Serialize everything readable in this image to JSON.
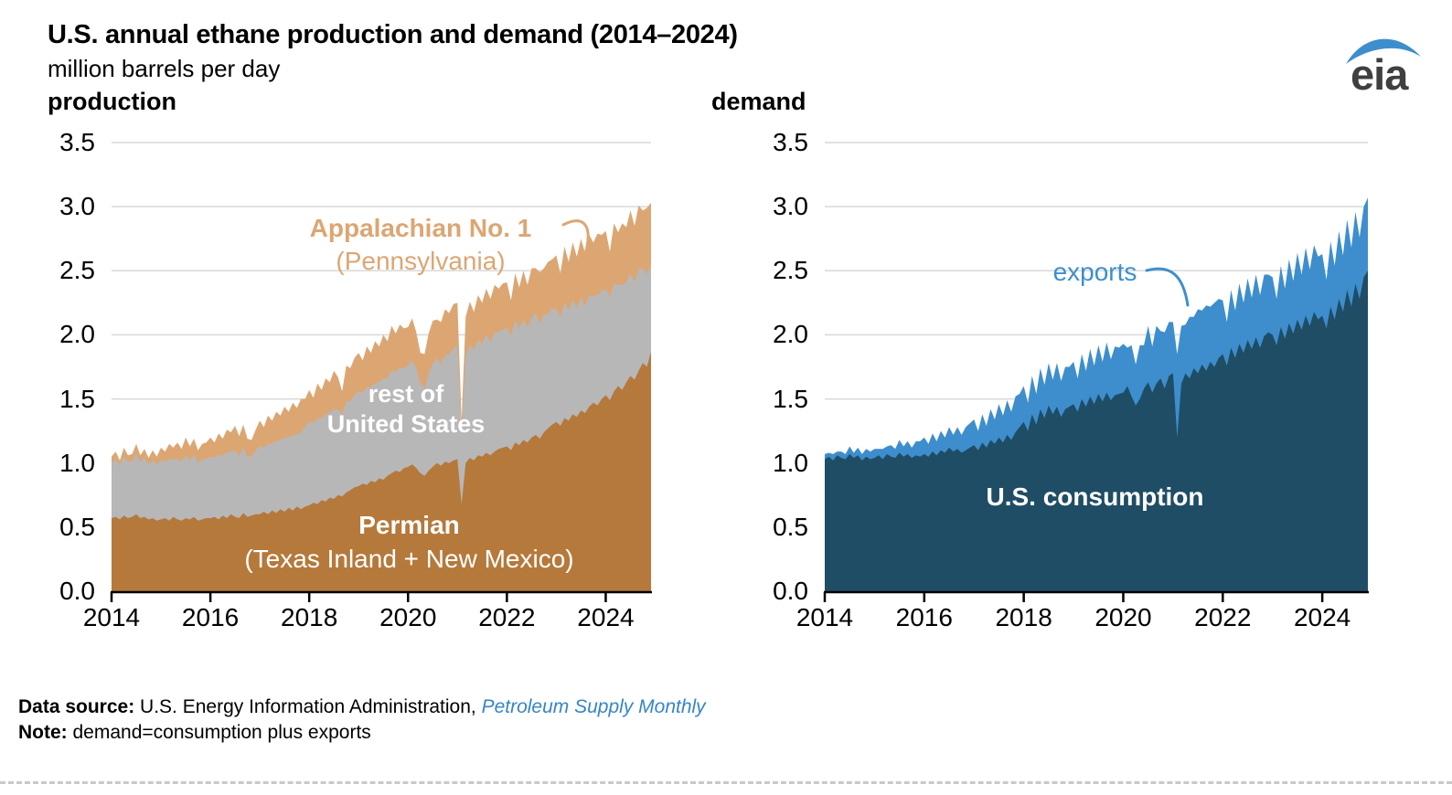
{
  "header": {
    "title": "U.S. annual ethane production and demand (2014–2024)",
    "subtitle": "million barrels per day",
    "logo_text": "eia"
  },
  "footer": {
    "source_label": "Data source:",
    "source_text": " U.S. Energy Information Administration, ",
    "source_link": "Petroleum Supply Monthly",
    "note_label": "Note:",
    "note_text": " demand=consumption plus exports"
  },
  "chart_data": [
    {
      "type": "area",
      "stacked": true,
      "title": "production",
      "ylabel": "million barrels per day",
      "ylim": [
        0,
        3.5
      ],
      "x_start": 2014,
      "points_per_year": 12,
      "x_ticks": [
        2014,
        2016,
        2018,
        2020,
        2022,
        2024
      ],
      "y_ticks": [
        0,
        0.5,
        1.0,
        1.5,
        2.0,
        2.5,
        3.0,
        3.5
      ],
      "y_tick_labels": [
        "0.0",
        "0.5",
        "1.0",
        "1.5",
        "2.0",
        "2.5",
        "3.0",
        "3.5"
      ],
      "grid": "horizontal",
      "legend_position": "inline-annotations",
      "annotations": {
        "appalachian": {
          "line1": "Appalachian No. 1",
          "line2": "(Pennsylvania)",
          "color": "#DCA673"
        },
        "rest": {
          "line1": "rest of",
          "line2": "United States",
          "color": "#ffffff"
        },
        "permian": {
          "line1": "Permian",
          "line2": "(Texas Inland + New Mexico)",
          "color": "#ffffff"
        }
      },
      "series": [
        {
          "name": "Permian (Texas Inland + New Mexico)",
          "color": "#B5793C",
          "values": [
            0.57,
            0.58,
            0.56,
            0.59,
            0.57,
            0.58,
            0.6,
            0.57,
            0.58,
            0.56,
            0.57,
            0.55,
            0.56,
            0.57,
            0.55,
            0.58,
            0.56,
            0.55,
            0.57,
            0.56,
            0.58,
            0.55,
            0.56,
            0.57,
            0.57,
            0.58,
            0.56,
            0.59,
            0.57,
            0.6,
            0.58,
            0.57,
            0.61,
            0.58,
            0.59,
            0.6,
            0.6,
            0.62,
            0.6,
            0.63,
            0.61,
            0.64,
            0.62,
            0.65,
            0.63,
            0.66,
            0.64,
            0.66,
            0.67,
            0.69,
            0.68,
            0.71,
            0.7,
            0.73,
            0.72,
            0.75,
            0.74,
            0.77,
            0.79,
            0.81,
            0.82,
            0.84,
            0.83,
            0.86,
            0.85,
            0.88,
            0.87,
            0.9,
            0.92,
            0.94,
            0.93,
            0.96,
            0.97,
            0.99,
            0.96,
            0.92,
            0.9,
            0.94,
            0.97,
            1.0,
            0.98,
            1.01,
            1.0,
            1.02,
            1.03,
            0.68,
            1.0,
            1.04,
            1.02,
            1.06,
            1.05,
            1.08,
            1.06,
            1.09,
            1.11,
            1.12,
            1.13,
            1.1,
            1.16,
            1.14,
            1.18,
            1.16,
            1.2,
            1.22,
            1.19,
            1.24,
            1.27,
            1.3,
            1.32,
            1.29,
            1.35,
            1.33,
            1.38,
            1.36,
            1.41,
            1.39,
            1.44,
            1.47,
            1.45,
            1.5,
            1.53,
            1.49,
            1.56,
            1.6,
            1.57,
            1.63,
            1.68,
            1.65,
            1.72,
            1.78,
            1.75,
            1.87
          ]
        },
        {
          "name": "rest of United States",
          "color": "#B7B7B7",
          "values": [
            0.43,
            0.45,
            0.42,
            0.46,
            0.44,
            0.43,
            0.47,
            0.44,
            0.46,
            0.43,
            0.45,
            0.44,
            0.46,
            0.44,
            0.48,
            0.45,
            0.47,
            0.46,
            0.49,
            0.46,
            0.48,
            0.45,
            0.47,
            0.46,
            0.48,
            0.46,
            0.5,
            0.47,
            0.51,
            0.49,
            0.52,
            0.48,
            0.51,
            0.47,
            0.46,
            0.5,
            0.53,
            0.5,
            0.55,
            0.52,
            0.56,
            0.54,
            0.58,
            0.55,
            0.59,
            0.56,
            0.6,
            0.62,
            0.65,
            0.62,
            0.67,
            0.64,
            0.68,
            0.66,
            0.7,
            0.67,
            0.64,
            0.71,
            0.69,
            0.72,
            0.74,
            0.71,
            0.76,
            0.73,
            0.77,
            0.75,
            0.79,
            0.76,
            0.8,
            0.77,
            0.81,
            0.78,
            0.79,
            0.81,
            0.78,
            0.7,
            0.68,
            0.76,
            0.8,
            0.82,
            0.79,
            0.83,
            0.85,
            0.87,
            0.89,
            0.55,
            0.84,
            0.88,
            0.86,
            0.9,
            0.88,
            0.92,
            0.89,
            0.93,
            0.91,
            0.92,
            0.93,
            0.89,
            0.95,
            0.91,
            0.94,
            0.9,
            0.93,
            0.95,
            0.9,
            0.92,
            0.89,
            0.91,
            0.88,
            0.85,
            0.9,
            0.86,
            0.89,
            0.85,
            0.88,
            0.84,
            0.87,
            0.83,
            0.86,
            0.84,
            0.83,
            0.8,
            0.84,
            0.79,
            0.82,
            0.78,
            0.8,
            0.76,
            0.79,
            0.74,
            0.72,
            0.68
          ]
        },
        {
          "name": "Appalachian No. 1 (Pennsylvania)",
          "color": "#DCA673",
          "values": [
            0.05,
            0.06,
            0.04,
            0.07,
            0.05,
            0.06,
            0.08,
            0.05,
            0.07,
            0.05,
            0.08,
            0.06,
            0.1,
            0.08,
            0.12,
            0.09,
            0.13,
            0.1,
            0.14,
            0.11,
            0.13,
            0.1,
            0.12,
            0.13,
            0.15,
            0.12,
            0.17,
            0.13,
            0.18,
            0.15,
            0.19,
            0.16,
            0.18,
            0.14,
            0.13,
            0.16,
            0.2,
            0.16,
            0.22,
            0.18,
            0.23,
            0.19,
            0.24,
            0.2,
            0.25,
            0.21,
            0.26,
            0.22,
            0.25,
            0.2,
            0.27,
            0.22,
            0.28,
            0.24,
            0.3,
            0.25,
            0.18,
            0.28,
            0.26,
            0.29,
            0.3,
            0.25,
            0.32,
            0.27,
            0.33,
            0.28,
            0.34,
            0.29,
            0.35,
            0.3,
            0.34,
            0.31,
            0.3,
            0.33,
            0.28,
            0.24,
            0.27,
            0.31,
            0.34,
            0.3,
            0.33,
            0.36,
            0.32,
            0.35,
            0.33,
            0.1,
            0.3,
            0.34,
            0.3,
            0.35,
            0.32,
            0.36,
            0.33,
            0.37,
            0.34,
            0.36,
            0.35,
            0.28,
            0.37,
            0.32,
            0.38,
            0.33,
            0.39,
            0.35,
            0.4,
            0.36,
            0.41,
            0.38,
            0.42,
            0.34,
            0.44,
            0.38,
            0.45,
            0.4,
            0.46,
            0.41,
            0.47,
            0.42,
            0.48,
            0.44,
            0.45,
            0.36,
            0.47,
            0.41,
            0.48,
            0.43,
            0.49,
            0.44,
            0.5,
            0.45,
            0.52,
            0.48
          ]
        }
      ]
    },
    {
      "type": "area",
      "stacked": true,
      "title": "demand",
      "ylabel": "million barrels per day",
      "ylim": [
        0,
        3.5
      ],
      "x_start": 2014,
      "points_per_year": 12,
      "x_ticks": [
        2014,
        2016,
        2018,
        2020,
        2022,
        2024
      ],
      "y_ticks": [
        0,
        0.5,
        1.0,
        1.5,
        2.0,
        2.5,
        3.0,
        3.5
      ],
      "y_tick_labels": [
        "0.0",
        "0.5",
        "1.0",
        "1.5",
        "2.0",
        "2.5",
        "3.0",
        "3.5"
      ],
      "grid": "horizontal",
      "legend_position": "inline-annotations",
      "annotations": {
        "exports": {
          "line1": "exports",
          "color": "#3E8ECD"
        },
        "consumption": {
          "line1": "U.S. consumption",
          "color": "#ffffff"
        }
      },
      "series": [
        {
          "name": "U.S. consumption",
          "color": "#1F4D66",
          "values": [
            1.03,
            1.05,
            1.02,
            1.06,
            1.04,
            1.03,
            1.07,
            1.04,
            1.06,
            1.02,
            1.05,
            1.03,
            1.04,
            1.06,
            1.03,
            1.07,
            1.05,
            1.04,
            1.08,
            1.05,
            1.07,
            1.04,
            1.06,
            1.05,
            1.07,
            1.05,
            1.09,
            1.06,
            1.1,
            1.08,
            1.12,
            1.09,
            1.11,
            1.08,
            1.1,
            1.12,
            1.14,
            1.1,
            1.16,
            1.12,
            1.18,
            1.15,
            1.2,
            1.16,
            1.22,
            1.18,
            1.24,
            1.28,
            1.32,
            1.25,
            1.38,
            1.3,
            1.42,
            1.35,
            1.45,
            1.38,
            1.44,
            1.36,
            1.42,
            1.44,
            1.46,
            1.4,
            1.5,
            1.44,
            1.52,
            1.46,
            1.54,
            1.48,
            1.55,
            1.49,
            1.53,
            1.54,
            1.55,
            1.6,
            1.52,
            1.45,
            1.5,
            1.58,
            1.63,
            1.55,
            1.62,
            1.66,
            1.58,
            1.68,
            1.7,
            1.2,
            1.62,
            1.7,
            1.66,
            1.74,
            1.7,
            1.77,
            1.72,
            1.79,
            1.75,
            1.82,
            1.85,
            1.76,
            1.9,
            1.82,
            1.93,
            1.86,
            1.96,
            1.89,
            1.98,
            1.9,
            1.99,
            2.02,
            2.0,
            1.92,
            2.06,
            1.97,
            2.09,
            2.01,
            2.12,
            2.04,
            2.15,
            2.07,
            2.18,
            2.12,
            2.15,
            2.05,
            2.22,
            2.12,
            2.28,
            2.18,
            2.35,
            2.22,
            2.4,
            2.28,
            2.45,
            2.5
          ]
        },
        {
          "name": "exports",
          "color": "#3E8ECD",
          "values": [
            0.04,
            0.03,
            0.05,
            0.03,
            0.05,
            0.04,
            0.06,
            0.04,
            0.06,
            0.05,
            0.06,
            0.06,
            0.07,
            0.05,
            0.08,
            0.06,
            0.09,
            0.07,
            0.1,
            0.08,
            0.1,
            0.08,
            0.11,
            0.12,
            0.13,
            0.1,
            0.14,
            0.11,
            0.15,
            0.12,
            0.16,
            0.13,
            0.17,
            0.14,
            0.18,
            0.19,
            0.2,
            0.15,
            0.22,
            0.17,
            0.24,
            0.19,
            0.26,
            0.21,
            0.27,
            0.22,
            0.28,
            0.26,
            0.28,
            0.22,
            0.3,
            0.24,
            0.32,
            0.26,
            0.33,
            0.27,
            0.34,
            0.28,
            0.33,
            0.31,
            0.33,
            0.26,
            0.35,
            0.28,
            0.37,
            0.3,
            0.38,
            0.31,
            0.39,
            0.32,
            0.38,
            0.36,
            0.38,
            0.3,
            0.4,
            0.32,
            0.42,
            0.34,
            0.44,
            0.36,
            0.45,
            0.37,
            0.44,
            0.42,
            0.4,
            0.65,
            0.45,
            0.38,
            0.48,
            0.4,
            0.5,
            0.42,
            0.51,
            0.43,
            0.5,
            0.46,
            0.42,
            0.34,
            0.45,
            0.37,
            0.47,
            0.39,
            0.48,
            0.4,
            0.49,
            0.41,
            0.48,
            0.45,
            0.45,
            0.36,
            0.48,
            0.39,
            0.5,
            0.41,
            0.52,
            0.43,
            0.53,
            0.44,
            0.52,
            0.49,
            0.48,
            0.38,
            0.51,
            0.42,
            0.53,
            0.44,
            0.55,
            0.46,
            0.56,
            0.48,
            0.55,
            0.57
          ]
        }
      ]
    }
  ]
}
